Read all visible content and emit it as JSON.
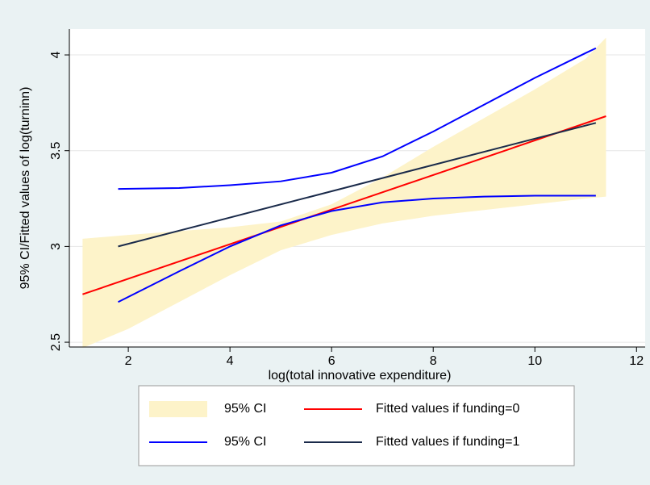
{
  "chart_data": {
    "type": "line",
    "xlabel": "log(total innovative expenditure)",
    "ylabel": "95% CI/Fitted values of log(turninn)",
    "xlim": [
      0.84,
      12.17
    ],
    "xticks": [
      2,
      4,
      6,
      8,
      10,
      12
    ],
    "ylim": [
      2.475,
      4.135
    ],
    "yticks": [
      2.5,
      3,
      3.5,
      4
    ],
    "grid": true,
    "series": [
      {
        "name": "95% CI",
        "kind": "band",
        "color": "#fdf3c9",
        "x": [
          1.1,
          2,
          3,
          4,
          5,
          6,
          7,
          8,
          9,
          10,
          11,
          11.4
        ],
        "upper": [
          3.04,
          3.06,
          3.08,
          3.1,
          3.13,
          3.22,
          3.36,
          3.52,
          3.67,
          3.82,
          3.98,
          4.09
        ],
        "lower": [
          2.47,
          2.57,
          2.71,
          2.85,
          2.98,
          3.06,
          3.12,
          3.16,
          3.19,
          3.22,
          3.25,
          3.26
        ]
      },
      {
        "name": "Fitted values if funding=0",
        "kind": "line",
        "color": "#ff0000",
        "x": [
          1.1,
          11.4
        ],
        "values": [
          2.75,
          3.68
        ]
      },
      {
        "name": "95% CI",
        "kind": "lines",
        "color": "#0000ff",
        "x": [
          1.8,
          3,
          4,
          5,
          6,
          7,
          8,
          9,
          10,
          11,
          11.2
        ],
        "upper": [
          3.3,
          3.305,
          3.32,
          3.34,
          3.385,
          3.47,
          3.6,
          3.74,
          3.88,
          4.01,
          4.035
        ],
        "lower": [
          2.71,
          2.87,
          3.0,
          3.11,
          3.185,
          3.23,
          3.25,
          3.26,
          3.265,
          3.265,
          3.265
        ]
      },
      {
        "name": "Fitted values if funding=1",
        "kind": "line",
        "color": "#1a2a4a",
        "x": [
          1.8,
          11.2
        ],
        "values": [
          3.0,
          3.645
        ]
      }
    ]
  }
}
